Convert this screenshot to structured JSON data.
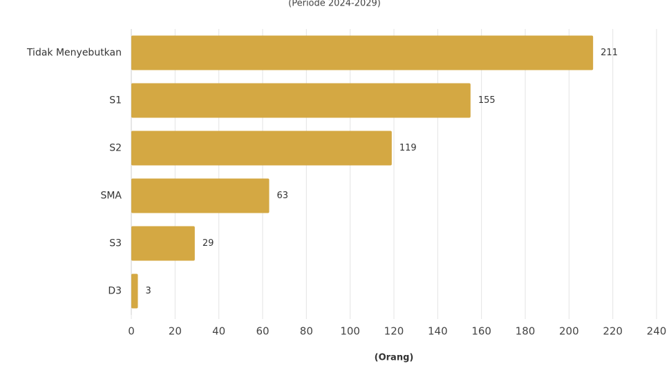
{
  "chart_data": {
    "type": "bar",
    "orientation": "horizontal",
    "subtitle": "(Periode 2024-2029)",
    "x_label": "(Orang)",
    "categories": [
      "Tidak Menyebutkan",
      "S1",
      "S2",
      "SMA",
      "S3",
      "D3"
    ],
    "values": [
      211,
      155,
      119,
      63,
      29,
      3
    ],
    "color": "#d4a843",
    "xlim": [
      0,
      240
    ],
    "xticks": [
      0,
      20,
      40,
      60,
      80,
      100,
      120,
      140,
      160,
      180,
      200,
      220,
      240
    ],
    "grid": true
  }
}
